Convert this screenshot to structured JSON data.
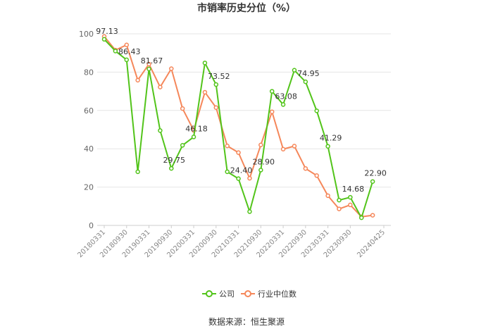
{
  "chart_data": {
    "type": "line",
    "title": "市销率历史分位（%）",
    "source": "数据来源：恒生聚源",
    "ylim": [
      0,
      100
    ],
    "yticks": [
      "0",
      "20",
      "40",
      "60",
      "80",
      "100"
    ],
    "x_tick_labels": [
      "20180331",
      "20180930",
      "20190331",
      "20190930",
      "20200331",
      "20200930",
      "20210331",
      "20210930",
      "20220331",
      "20220930",
      "20230331",
      "20230930",
      "20240425"
    ],
    "x": [
      "20180331",
      "20180630",
      "20180930",
      "20181231",
      "20190331",
      "20190630",
      "20190930",
      "20191231",
      "20200331",
      "20200630",
      "20200930",
      "20201231",
      "20210331",
      "20210630",
      "20210930",
      "20211231",
      "20220331",
      "20220630",
      "20220930",
      "20221231",
      "20230331",
      "20230630",
      "20230930",
      "20231231",
      "20240331",
      "20240425"
    ],
    "grid": true,
    "legend_position": "bottom-center",
    "series": [
      {
        "name": "公司",
        "color": "#52c41a",
        "values": [
          97.13,
          91.0,
          86.43,
          28.0,
          81.67,
          49.5,
          29.75,
          41.8,
          46.18,
          84.8,
          73.52,
          28.0,
          24.4,
          7.2,
          28.9,
          70.0,
          63.08,
          81.0,
          74.95,
          59.8,
          41.29,
          13.2,
          14.68,
          4.0,
          22.9,
          null
        ]
      },
      {
        "name": "行业中位数",
        "color": "#f5875a",
        "values": [
          98.6,
          91.5,
          94.2,
          75.8,
          84.2,
          72.2,
          81.8,
          61.0,
          49.6,
          69.5,
          61.5,
          41.5,
          38.0,
          24.6,
          42.0,
          59.3,
          39.8,
          41.4,
          29.7,
          26.0,
          15.5,
          8.6,
          10.7,
          4.5,
          5.3,
          null
        ]
      }
    ],
    "data_labels": [
      {
        "index": 0,
        "text": "97.13"
      },
      {
        "index": 2,
        "text": "86.43"
      },
      {
        "index": 4,
        "text": "81.67"
      },
      {
        "index": 6,
        "text": "29.75"
      },
      {
        "index": 8,
        "text": "46.18"
      },
      {
        "index": 10,
        "text": "73.52"
      },
      {
        "index": 12,
        "text": "24.40"
      },
      {
        "index": 14,
        "text": "28.90"
      },
      {
        "index": 16,
        "text": "63.08"
      },
      {
        "index": 18,
        "text": "74.95"
      },
      {
        "index": 20,
        "text": "41.29"
      },
      {
        "index": 22,
        "text": "14.68"
      },
      {
        "index": 24,
        "text": "22.90"
      }
    ]
  }
}
